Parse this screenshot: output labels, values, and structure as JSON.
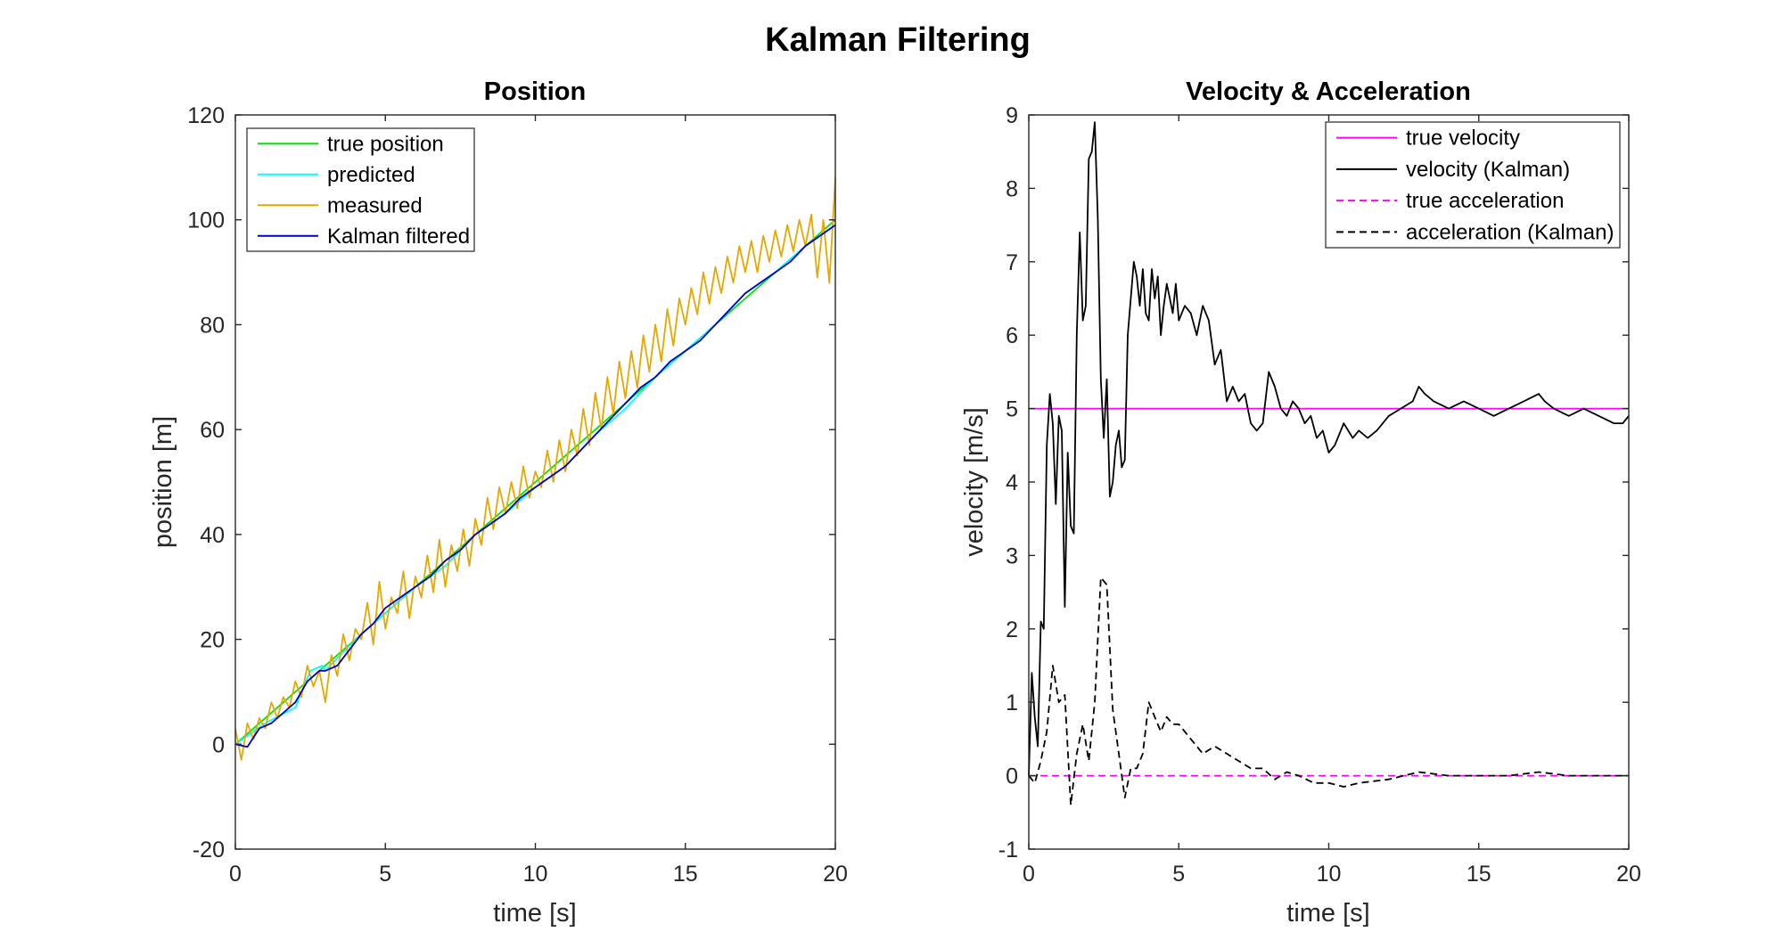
{
  "figure": {
    "title": "Kalman Filtering"
  },
  "chart_data": [
    {
      "type": "line",
      "title": "Position",
      "xlabel": "time [s]",
      "ylabel": "position [m]",
      "xlim": [
        0,
        20
      ],
      "ylim": [
        -20,
        120
      ],
      "xticks": [
        "0",
        "5",
        "10",
        "15",
        "20"
      ],
      "yticks": [
        "-20",
        "0",
        "20",
        "40",
        "60",
        "80",
        "100",
        "120"
      ],
      "grid": false,
      "legend": "top-left",
      "series": [
        {
          "name": "true position",
          "color": "#00e400",
          "dash": "solid",
          "x": [
            0,
            20
          ],
          "y": [
            0,
            100
          ]
        },
        {
          "name": "predicted",
          "color": "#00ffff",
          "dash": "solid",
          "x": [
            0,
            1,
            2,
            2.5,
            2.9,
            3,
            4,
            5,
            6,
            7,
            8,
            9,
            10,
            11,
            12,
            13,
            14,
            15,
            16,
            17,
            18,
            19,
            20
          ],
          "y": [
            0,
            4,
            7,
            14,
            15,
            14,
            20,
            25,
            30,
            34,
            40,
            44,
            49,
            53,
            59,
            64,
            70,
            75,
            80,
            86,
            90,
            95,
            99
          ]
        },
        {
          "name": "measured",
          "color": "#e6a800",
          "dash": "solid",
          "x": [
            0,
            0.2,
            0.4,
            0.6,
            0.8,
            1.0,
            1.2,
            1.4,
            1.6,
            1.8,
            2.0,
            2.2,
            2.4,
            2.6,
            2.8,
            3.0,
            3.2,
            3.4,
            3.6,
            3.8,
            4.0,
            4.2,
            4.4,
            4.6,
            4.8,
            5.0,
            5.2,
            5.4,
            5.6,
            5.8,
            6.0,
            6.2,
            6.4,
            6.6,
            6.8,
            7.0,
            7.2,
            7.4,
            7.6,
            7.8,
            8.0,
            8.2,
            8.4,
            8.6,
            8.8,
            9.0,
            9.2,
            9.4,
            9.6,
            9.8,
            10.0,
            10.2,
            10.4,
            10.6,
            10.8,
            11.0,
            11.2,
            11.4,
            11.6,
            11.8,
            12.0,
            12.2,
            12.4,
            12.6,
            12.8,
            13.0,
            13.2,
            13.4,
            13.6,
            13.8,
            14.0,
            14.2,
            14.4,
            14.6,
            14.8,
            15.0,
            15.2,
            15.4,
            15.6,
            15.8,
            16.0,
            16.2,
            16.4,
            16.6,
            16.8,
            17.0,
            17.2,
            17.4,
            17.6,
            17.8,
            18.0,
            18.2,
            18.4,
            18.6,
            18.8,
            19.0,
            19.2,
            19.4,
            19.6,
            19.8,
            20.0
          ],
          "y": [
            3,
            -3,
            4,
            1,
            5,
            3,
            8,
            5,
            9,
            7,
            12,
            9,
            15,
            11,
            14,
            8,
            17,
            13,
            21,
            16,
            22,
            20,
            27,
            19,
            31,
            22,
            28,
            25,
            33,
            24,
            32,
            28,
            36,
            29,
            39,
            30,
            38,
            33,
            41,
            34,
            43,
            38,
            47,
            41,
            49,
            44,
            50,
            45,
            53,
            47,
            52,
            49,
            56,
            50,
            58,
            52,
            60,
            55,
            64,
            57,
            67,
            60,
            70,
            63,
            73,
            66,
            75,
            68,
            78,
            71,
            80,
            73,
            83,
            76,
            85,
            80,
            87,
            82,
            90,
            84,
            91,
            86,
            93,
            88,
            95,
            90,
            96,
            90,
            97,
            92,
            98,
            93,
            99,
            94,
            100,
            95,
            101,
            89,
            100,
            88,
            108
          ]
        },
        {
          "name": "Kalman filtered",
          "color": "#0000c8",
          "dash": "solid",
          "x": [
            0,
            0.4,
            0.8,
            1.2,
            1.6,
            2.0,
            2.4,
            2.8,
            3.0,
            3.4,
            3.8,
            4.2,
            4.6,
            5.0,
            5.5,
            6.0,
            6.5,
            7.0,
            7.5,
            8.0,
            8.5,
            9.0,
            9.5,
            10.0,
            10.5,
            11.0,
            11.5,
            12.0,
            12.5,
            13.0,
            13.5,
            14.0,
            14.5,
            15.0,
            15.5,
            16.0,
            16.5,
            17.0,
            17.5,
            18.0,
            18.5,
            19.0,
            19.5,
            20.0
          ],
          "y": [
            0,
            -0.5,
            3,
            4,
            6,
            8,
            12,
            14,
            14,
            15,
            18,
            21,
            23,
            26,
            28,
            30,
            32,
            35,
            37,
            40,
            42,
            44,
            47,
            49,
            51,
            53,
            56,
            59,
            62,
            65,
            68,
            70,
            73,
            75,
            77,
            80,
            83,
            86,
            88,
            90,
            92,
            95,
            97,
            99
          ]
        }
      ]
    },
    {
      "type": "line",
      "title": "Velocity & Acceleration",
      "xlabel": "time [s]",
      "ylabel": "velocity [m/s]",
      "xlim": [
        0,
        20
      ],
      "ylim": [
        -1,
        9
      ],
      "xticks": [
        "0",
        "5",
        "10",
        "15",
        "20"
      ],
      "yticks": [
        "-1",
        "0",
        "1",
        "2",
        "3",
        "4",
        "5",
        "6",
        "7",
        "8",
        "9"
      ],
      "grid": false,
      "legend": "top-right",
      "series": [
        {
          "name": "true velocity",
          "color": "#ff00ff",
          "dash": "solid",
          "x": [
            0,
            20
          ],
          "y": [
            5,
            5
          ]
        },
        {
          "name": "velocity (Kalman)",
          "color": "#000000",
          "dash": "solid",
          "x": [
            0,
            0.1,
            0.2,
            0.3,
            0.4,
            0.5,
            0.6,
            0.7,
            0.8,
            0.9,
            1.0,
            1.1,
            1.2,
            1.3,
            1.4,
            1.5,
            1.6,
            1.7,
            1.8,
            1.9,
            2.0,
            2.1,
            2.2,
            2.3,
            2.4,
            2.5,
            2.6,
            2.7,
            2.8,
            2.9,
            3.0,
            3.1,
            3.2,
            3.3,
            3.5,
            3.6,
            3.7,
            3.8,
            3.9,
            4.0,
            4.1,
            4.2,
            4.3,
            4.4,
            4.5,
            4.6,
            4.7,
            4.8,
            4.9,
            5.0,
            5.2,
            5.4,
            5.6,
            5.8,
            6.0,
            6.2,
            6.4,
            6.6,
            6.8,
            7.0,
            7.2,
            7.4,
            7.6,
            7.8,
            8.0,
            8.2,
            8.4,
            8.6,
            8.8,
            9.0,
            9.2,
            9.4,
            9.6,
            9.8,
            10.0,
            10.2,
            10.5,
            10.8,
            11.0,
            11.3,
            11.6,
            12.0,
            12.4,
            12.8,
            13.0,
            13.2,
            13.5,
            14.0,
            14.5,
            15.0,
            15.5,
            16.0,
            16.5,
            17.0,
            17.2,
            17.5,
            18.0,
            18.5,
            19.0,
            19.5,
            19.8,
            20.0
          ],
          "y": [
            0,
            1.4,
            0.8,
            0.4,
            2.1,
            2.0,
            4.5,
            5.2,
            4.8,
            3.7,
            4.9,
            4.7,
            2.3,
            4.4,
            3.4,
            3.3,
            6.0,
            7.4,
            6.2,
            6.4,
            8.4,
            8.5,
            8.9,
            7.6,
            5.4,
            4.6,
            5.4,
            3.8,
            4.0,
            4.5,
            4.7,
            4.2,
            4.3,
            6.0,
            7.0,
            6.8,
            6.4,
            6.9,
            6.3,
            6.2,
            6.9,
            6.5,
            6.8,
            6.0,
            6.4,
            6.7,
            6.5,
            6.3,
            6.7,
            6.2,
            6.4,
            6.3,
            6.0,
            6.4,
            6.2,
            5.6,
            5.8,
            5.1,
            5.3,
            5.1,
            5.2,
            4.8,
            4.7,
            4.8,
            5.5,
            5.3,
            5.0,
            4.9,
            5.1,
            5.0,
            4.8,
            4.9,
            4.6,
            4.7,
            4.4,
            4.5,
            4.8,
            4.6,
            4.7,
            4.6,
            4.7,
            4.9,
            5.0,
            5.1,
            5.3,
            5.2,
            5.1,
            5.0,
            5.1,
            5.0,
            4.9,
            5.0,
            5.1,
            5.2,
            5.1,
            5.0,
            4.9,
            5.0,
            4.9,
            4.8,
            4.8,
            4.9
          ]
        },
        {
          "name": "true acceleration",
          "color": "#ff00ff",
          "dash": "dashed",
          "x": [
            0,
            20
          ],
          "y": [
            0,
            0
          ]
        },
        {
          "name": "acceleration (Kalman)",
          "color": "#000000",
          "dash": "dashed",
          "x": [
            0,
            0.2,
            0.4,
            0.6,
            0.8,
            1.0,
            1.2,
            1.4,
            1.6,
            1.8,
            2.0,
            2.2,
            2.4,
            2.6,
            2.8,
            3.0,
            3.2,
            3.4,
            3.6,
            3.8,
            4.0,
            4.2,
            4.4,
            4.6,
            4.8,
            5.0,
            5.4,
            5.8,
            6.2,
            6.6,
            7.0,
            7.4,
            7.8,
            8.2,
            8.6,
            9.0,
            9.5,
            10.0,
            10.5,
            11.0,
            12.0,
            13.0,
            14.0,
            15.0,
            16.0,
            17.0,
            18.0,
            19.0,
            20.0
          ],
          "y": [
            0,
            -0.1,
            0.2,
            0.6,
            1.5,
            1.0,
            1.1,
            -0.4,
            0.3,
            0.7,
            0.2,
            1.0,
            2.7,
            2.6,
            0.9,
            0.3,
            -0.3,
            0.1,
            0.1,
            0.3,
            1.0,
            0.8,
            0.6,
            0.8,
            0.7,
            0.7,
            0.5,
            0.3,
            0.4,
            0.3,
            0.2,
            0.1,
            0.1,
            -0.05,
            0.05,
            0.0,
            -0.1,
            -0.1,
            -0.15,
            -0.1,
            -0.05,
            0.05,
            0.0,
            0.0,
            0.0,
            0.05,
            0.0,
            0.0,
            0.0
          ]
        }
      ]
    }
  ]
}
